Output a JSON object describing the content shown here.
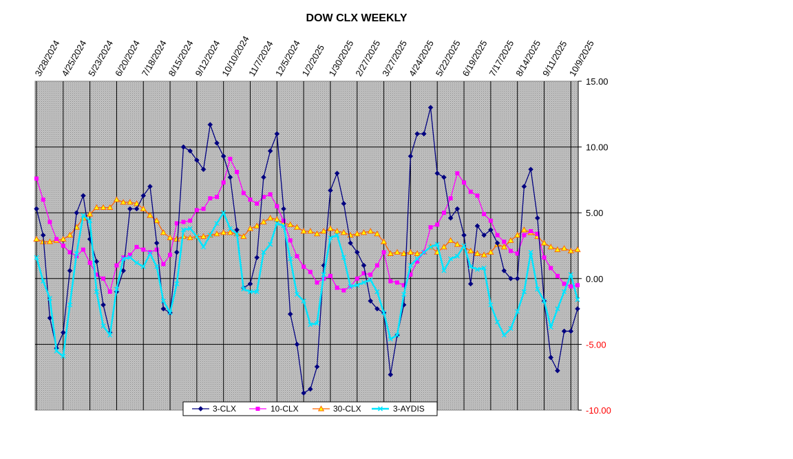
{
  "chart_data": {
    "type": "line",
    "title": "DOW CLX WEEKLY",
    "ylim": [
      -10,
      15
    ],
    "yticks": [
      {
        "value": 15,
        "label": "15.00"
      },
      {
        "value": 10,
        "label": "10.00"
      },
      {
        "value": 5,
        "label": "5.00"
      },
      {
        "value": 0,
        "label": "0.00"
      },
      {
        "value": -5,
        "label": "-5.00"
      },
      {
        "value": -10,
        "label": "-10.00"
      }
    ],
    "grid": true,
    "legend_position": "bottom",
    "x_tick_labels": [
      {
        "index": 0,
        "label": "3/28/2024"
      },
      {
        "index": 4,
        "label": "4/25/2024"
      },
      {
        "index": 8,
        "label": "5/23/2024"
      },
      {
        "index": 12,
        "label": "6/20/2024"
      },
      {
        "index": 16,
        "label": "7/18/2024"
      },
      {
        "index": 20,
        "label": "8/15/2024"
      },
      {
        "index": 24,
        "label": "9/12/2024"
      },
      {
        "index": 28,
        "label": "10/10/2024"
      },
      {
        "index": 32,
        "label": "11/7/2024"
      },
      {
        "index": 36,
        "label": "12/5/2024"
      },
      {
        "index": 40,
        "label": "1/2/2025"
      },
      {
        "index": 44,
        "label": "1/30/2025"
      },
      {
        "index": 48,
        "label": "2/27/2025"
      },
      {
        "index": 52,
        "label": "3/27/2025"
      },
      {
        "index": 56,
        "label": "4/24/2025"
      },
      {
        "index": 60,
        "label": "5/22/2025"
      },
      {
        "index": 64,
        "label": "6/19/2025"
      },
      {
        "index": 68,
        "label": "7/17/2025"
      },
      {
        "index": 72,
        "label": "8/14/2025"
      },
      {
        "index": 76,
        "label": "9/11/2025"
      },
      {
        "index": 80,
        "label": "10/9/2025"
      }
    ],
    "series": [
      {
        "name": "3-CLX",
        "color": "#000080",
        "marker": "diamond",
        "values": [
          5.3,
          3.3,
          -3.0,
          -5.3,
          -4.1,
          0.6,
          5.0,
          6.3,
          3.0,
          1.3,
          -2.0,
          -4.1,
          -1.0,
          0.6,
          5.3,
          5.3,
          6.3,
          7.0,
          2.7,
          -2.3,
          -2.6,
          2.0,
          10.0,
          9.7,
          9.0,
          8.3,
          11.7,
          10.3,
          9.3,
          7.7,
          3.7,
          -0.7,
          -0.4,
          1.6,
          7.7,
          9.7,
          11.0,
          5.3,
          -2.7,
          -5.0,
          -8.7,
          -8.4,
          -6.7,
          1.0,
          6.7,
          8.0,
          5.7,
          2.7,
          2.0,
          1.0,
          -1.7,
          -2.3,
          -2.6,
          -7.3,
          -4.3,
          -2.0,
          9.3,
          11.0,
          11.0,
          13.0,
          8.0,
          7.7,
          4.6,
          5.3,
          3.3,
          -0.4,
          4.0,
          3.3,
          3.7,
          2.7,
          0.6,
          0.0,
          0.0,
          7.0,
          8.3,
          4.6,
          -1.7,
          -6.0,
          -7.0,
          -4.0,
          -4.0,
          -2.3
        ]
      },
      {
        "name": "10-CLX",
        "color": "#ff00ff",
        "marker": "square",
        "values": [
          7.6,
          6.0,
          4.3,
          3.0,
          2.5,
          2.0,
          1.7,
          2.2,
          1.2,
          0.3,
          0.0,
          -1.0,
          1.0,
          1.6,
          1.8,
          2.4,
          2.2,
          2.0,
          2.2,
          1.1,
          1.8,
          4.2,
          4.3,
          4.4,
          5.2,
          5.3,
          6.1,
          6.2,
          7.3,
          9.1,
          8.1,
          6.5,
          6.0,
          5.7,
          6.2,
          6.4,
          5.5,
          4.4,
          2.9,
          1.7,
          0.9,
          0.5,
          -0.3,
          0.0,
          0.2,
          -0.7,
          -0.9,
          -0.6,
          0.0,
          0.4,
          0.3,
          1.0,
          2.0,
          -0.2,
          -0.3,
          -0.5,
          0.3,
          1.3,
          2.0,
          3.9,
          4.1,
          5.0,
          6.1,
          8.0,
          7.3,
          6.6,
          6.3,
          4.9,
          4.4,
          3.3,
          2.8,
          2.1,
          1.9,
          3.3,
          3.6,
          3.4,
          1.6,
          0.8,
          0.2,
          -0.4,
          -0.6,
          -0.5
        ]
      },
      {
        "name": "30-CLX",
        "color": "#ff6600",
        "marker": "triangle",
        "values": [
          3.0,
          2.8,
          2.8,
          2.9,
          3.0,
          3.3,
          3.9,
          4.6,
          4.9,
          5.4,
          5.4,
          5.4,
          6.0,
          5.8,
          5.8,
          5.7,
          5.3,
          4.8,
          4.4,
          3.5,
          3.1,
          3.0,
          3.2,
          3.1,
          3.2,
          3.2,
          3.3,
          3.4,
          3.5,
          3.5,
          3.4,
          3.2,
          3.8,
          4.0,
          4.3,
          4.6,
          4.5,
          4.2,
          4.1,
          3.9,
          3.6,
          3.6,
          3.4,
          3.6,
          3.8,
          3.6,
          3.5,
          3.3,
          3.4,
          3.5,
          3.6,
          3.4,
          2.8,
          1.9,
          2.0,
          1.9,
          2.0,
          1.9,
          2.0,
          2.4,
          2.0,
          2.4,
          2.9,
          2.6,
          2.4,
          2.1,
          1.9,
          1.8,
          2.0,
          2.6,
          2.4,
          2.9,
          3.3,
          3.7,
          3.5,
          3.2,
          2.7,
          2.4,
          2.2,
          2.3,
          2.1,
          2.2
        ]
      },
      {
        "name": "3-AYDIS",
        "color": "#00e5ff",
        "marker": "x",
        "values": [
          1.6,
          -0.2,
          -1.5,
          -5.5,
          -5.9,
          -2.0,
          1.9,
          4.8,
          4.4,
          -1.0,
          -3.6,
          -4.3,
          -0.8,
          1.5,
          1.6,
          1.2,
          0.9,
          1.9,
          0.9,
          -1.7,
          -2.6,
          -0.4,
          3.7,
          3.8,
          3.2,
          2.4,
          3.3,
          4.2,
          5.0,
          3.8,
          3.4,
          -0.8,
          -1.0,
          -1.0,
          2.0,
          2.6,
          4.2,
          4.0,
          1.5,
          -1.2,
          -1.7,
          -3.5,
          -3.4,
          0.3,
          3.1,
          3.3,
          1.6,
          -0.6,
          -0.5,
          -0.3,
          -0.1,
          -1.0,
          -2.6,
          -4.6,
          -4.3,
          -1.2,
          1.0,
          1.5,
          2.0,
          2.4,
          2.6,
          0.6,
          1.5,
          1.7,
          2.5,
          0.9,
          0.7,
          0.8,
          -2.0,
          -3.3,
          -4.3,
          -3.8,
          -2.5,
          -1.0,
          2.0,
          -0.8,
          -1.7,
          -3.7,
          -2.3,
          -1.0,
          0.3,
          -1.6
        ]
      }
    ]
  }
}
